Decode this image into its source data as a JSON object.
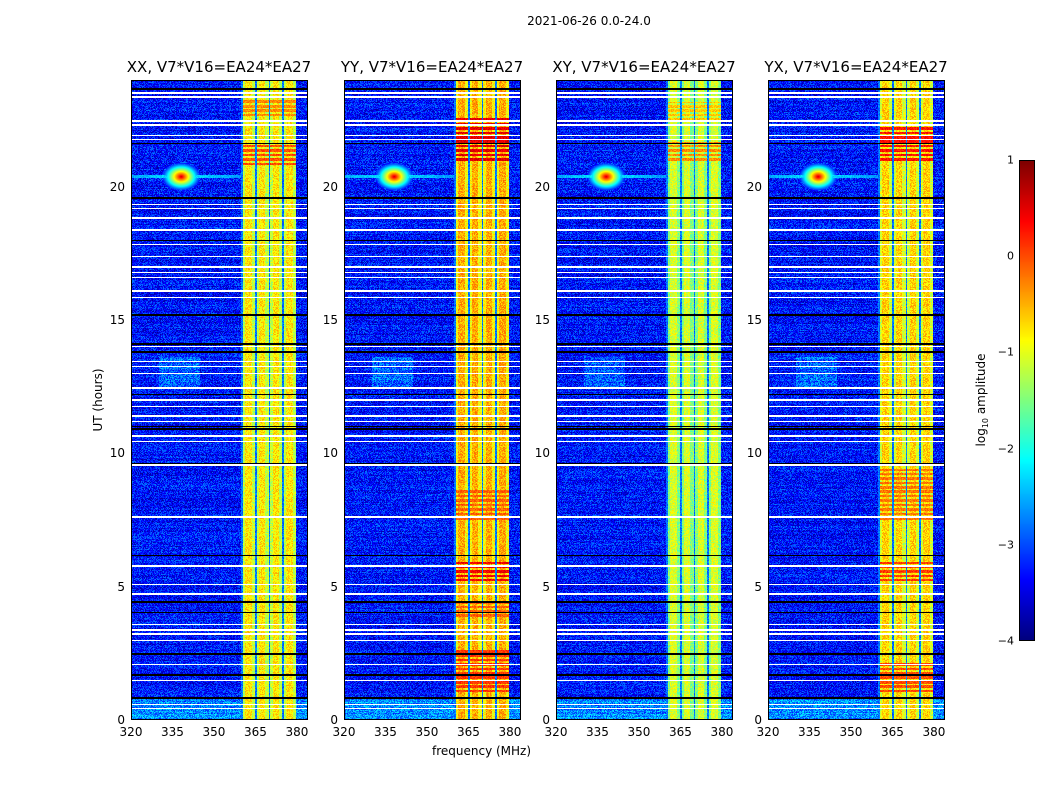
{
  "suptitle": "2021-06-26 0.0-24.0",
  "chart_data": {
    "type": "heatmap",
    "title": "2021-06-26 0.0-24.0",
    "xlabel": "frequency (MHz)",
    "ylabel": "UT (hours)",
    "xlim": [
      320,
      384
    ],
    "ylim": [
      0,
      24
    ],
    "xticks": [
      320,
      335,
      350,
      365,
      380
    ],
    "yticks": [
      0,
      5,
      10,
      15,
      20
    ],
    "colorbar": {
      "label_main": "log",
      "label_sub": "10",
      "label_rest": " amplitude",
      "colormap": "jet",
      "range": [
        -4,
        1
      ],
      "ticks": [
        "1",
        "0",
        "−1",
        "−2",
        "−3",
        "−4"
      ],
      "tick_values": [
        1,
        0,
        -1,
        -2,
        -3,
        -4
      ]
    },
    "panels": [
      {
        "title": "XX, V7*V16=EA24*EA27",
        "band_level": -0.9,
        "hot_rows": [
          [
            20.8,
            21.6,
            0.0
          ],
          [
            22.6,
            23.3,
            -0.3
          ]
        ]
      },
      {
        "title": "YY, V7*V16=EA24*EA27",
        "band_level": -0.6,
        "hot_rows": [
          [
            21.0,
            22.6,
            0.5
          ],
          [
            5.2,
            5.9,
            0.4
          ],
          [
            1.0,
            2.6,
            0.1
          ],
          [
            3.8,
            4.5,
            -0.1
          ],
          [
            7.5,
            8.6,
            -0.1
          ]
        ]
      },
      {
        "title": "XY, V7*V16=EA24*EA27",
        "band_level": -1.2,
        "hot_rows": [
          [
            21.0,
            21.7,
            -0.3
          ],
          [
            22.5,
            23.2,
            -0.6
          ]
        ]
      },
      {
        "title": "YX, V7*V16=EA24*EA27",
        "band_level": -0.8,
        "hot_rows": [
          [
            21.0,
            22.4,
            0.3
          ],
          [
            5.2,
            5.9,
            0.1
          ],
          [
            1.0,
            2.2,
            0.0
          ],
          [
            7.5,
            9.4,
            -0.2
          ]
        ]
      }
    ],
    "rfi_band_mhz": [
      360,
      380
    ],
    "bright_source": {
      "freq_mhz": 338,
      "ut_hours": 20.4,
      "log10_amplitude": 0.6
    },
    "flagged_rows_ut": [
      0.4,
      0.55,
      1.45,
      2.05,
      2.95,
      3.2,
      3.35,
      3.55,
      4.7,
      5.05,
      5.75,
      7.6,
      9.55,
      10.45,
      10.65,
      11.2,
      11.4,
      11.75,
      12.0,
      12.45,
      13.0,
      13.25,
      13.45,
      14.0,
      15.85,
      16.1,
      16.6,
      16.8,
      17.0,
      17.4,
      17.85,
      18.4,
      18.85,
      19.2,
      19.35,
      21.8,
      21.95,
      22.35,
      22.5,
      23.4,
      23.55
    ],
    "dark_rows_ut": [
      0.8,
      1.65,
      2.45,
      4.0,
      4.4,
      6.15,
      9.6,
      10.9,
      11.0,
      12.2,
      13.8,
      14.1,
      15.2,
      18.0,
      19.6,
      21.65,
      23.7
    ]
  }
}
